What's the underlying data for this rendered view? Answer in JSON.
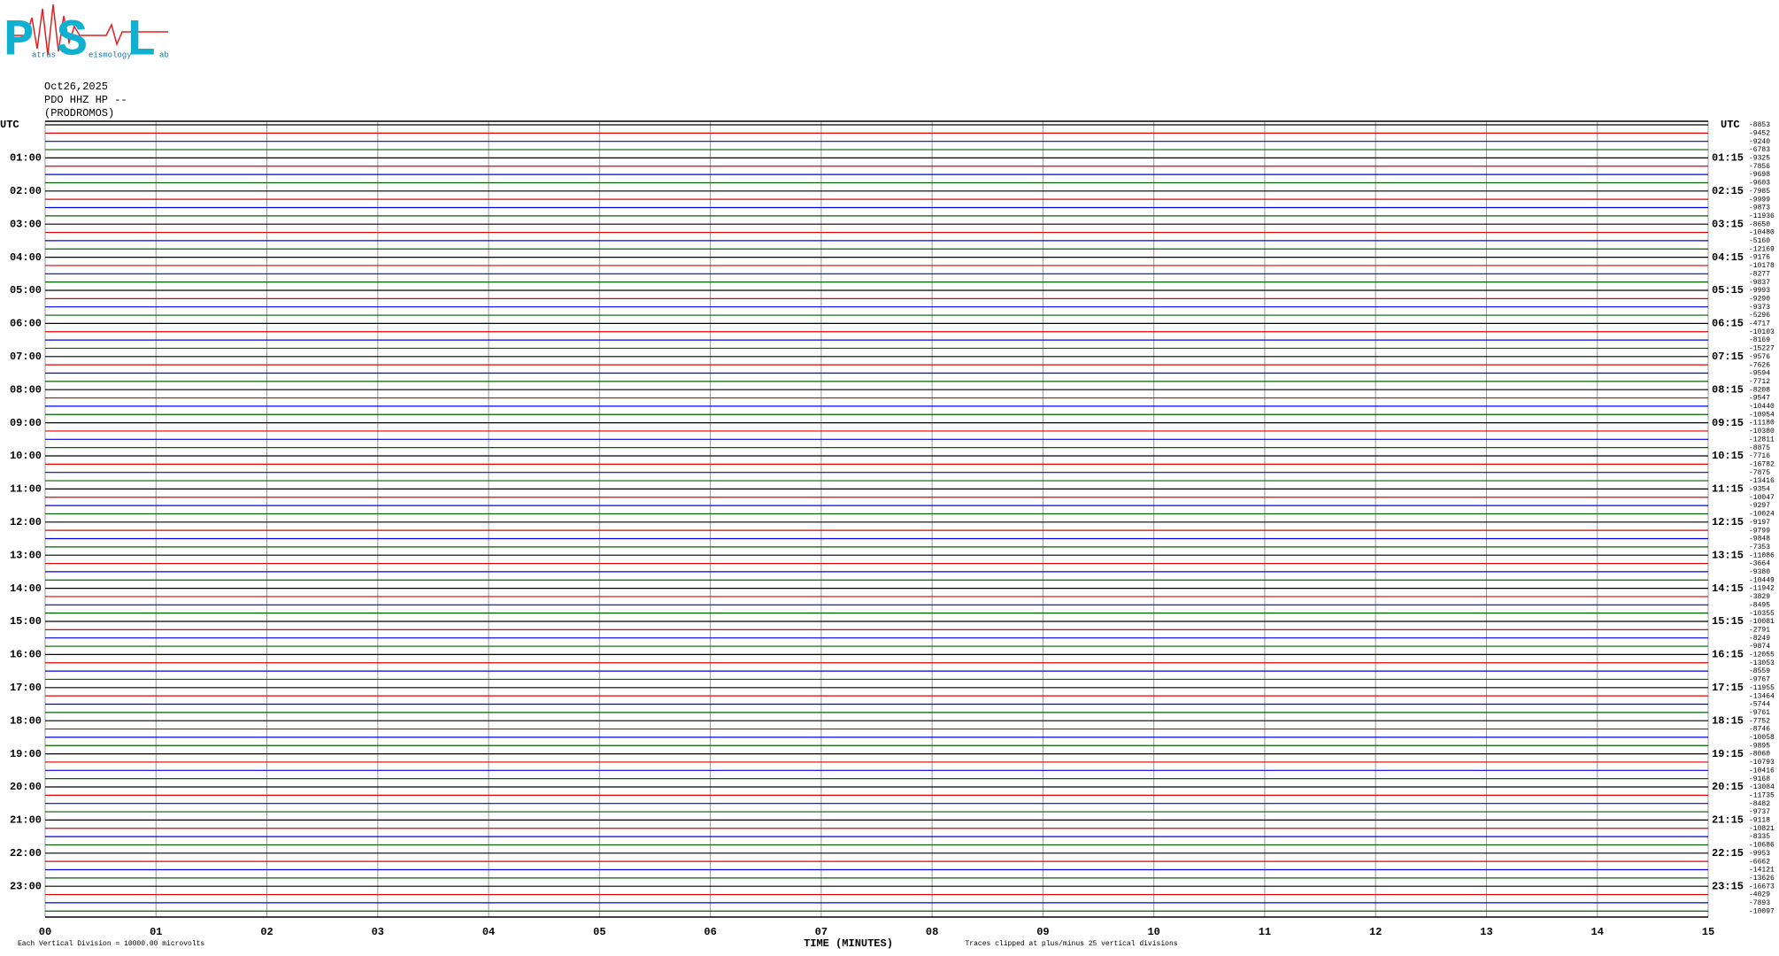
{
  "header": {
    "logo_letters": [
      "P",
      "S",
      "L"
    ],
    "logo_words": [
      "atras",
      "eismology",
      "ab"
    ],
    "date": "Oct26,2025",
    "station": "PDO HHZ HP --",
    "site": "(PRODROMOS)"
  },
  "chart_data": {
    "type": "helicorder",
    "left_title": "UTC",
    "right_title": "UTC",
    "left_labels": [
      "01:00",
      "02:00",
      "03:00",
      "04:00",
      "05:00",
      "06:00",
      "07:00",
      "08:00",
      "09:00",
      "10:00",
      "11:00",
      "12:00",
      "13:00",
      "14:00",
      "15:00",
      "16:00",
      "17:00",
      "18:00",
      "19:00",
      "20:00",
      "21:00",
      "22:00",
      "23:00"
    ],
    "right_labels": [
      "01:15",
      "02:15",
      "03:15",
      "04:15",
      "05:15",
      "06:15",
      "07:15",
      "08:15",
      "09:15",
      "10:15",
      "11:15",
      "12:15",
      "13:15",
      "14:15",
      "15:15",
      "16:15",
      "17:15",
      "18:15",
      "19:15",
      "20:15",
      "21:15",
      "22:15",
      "23:15"
    ],
    "trace_colors": [
      "#000000",
      "#e00000",
      "#0000e0",
      "#006000"
    ],
    "trace_values": [
      -8853,
      -9452,
      -9240,
      -6783,
      -9325,
      -7856,
      -9698,
      -9603,
      -7985,
      -9999,
      -9873,
      -11936,
      -8650,
      -10480,
      -5160,
      -12169,
      -9176,
      -10178,
      -8277,
      -9837,
      -9993,
      -9290,
      -9373,
      -5296,
      -4717,
      -10103,
      -8169,
      -15227,
      -9576,
      -7626,
      -9594,
      -7712,
      -8208,
      -9547,
      -10440,
      -10954,
      -11180,
      -10380,
      -12811,
      -8875,
      -7716,
      -16782,
      -7875,
      -13416,
      -9354,
      -10047,
      -9297,
      -10024,
      -9197,
      -9799,
      -9848,
      -7353,
      -11086,
      -3664,
      -9380,
      -10449,
      -11942,
      -3829,
      -8495,
      -10355,
      -10081,
      -2791,
      -8249,
      -9874,
      -12055,
      -13053,
      -8559,
      -9767,
      -11955,
      -13464,
      -5744,
      -9761,
      -7752,
      -8746,
      -10058,
      -9895,
      -8060,
      -10793,
      -10416,
      -9168,
      -13084,
      -11735,
      -8482,
      -9737,
      -9118,
      -10821,
      -8335,
      -10686,
      -9953,
      -6662,
      -14121,
      -13626,
      -16673,
      -4029,
      -7893,
      -10097
    ],
    "xlim": [
      0,
      15
    ],
    "xticks": [
      {
        "value": 0,
        "label": "00"
      },
      {
        "value": 1,
        "label": "01"
      },
      {
        "value": 2,
        "label": "02"
      },
      {
        "value": 3,
        "label": "03"
      },
      {
        "value": 4,
        "label": "04"
      },
      {
        "value": 5,
        "label": "05"
      },
      {
        "value": 6,
        "label": "06"
      },
      {
        "value": 7,
        "label": "07"
      },
      {
        "value": 8,
        "label": "08"
      },
      {
        "value": 9,
        "label": "09"
      },
      10,
      11,
      12,
      13,
      14,
      15
    ],
    "x_label": "TIME (MINUTES)",
    "note_left": "Each Vertical Division = 10000.00 microvolts",
    "note_right": "Traces clipped at plus/minus 25 vertical divisions",
    "grid": true
  }
}
